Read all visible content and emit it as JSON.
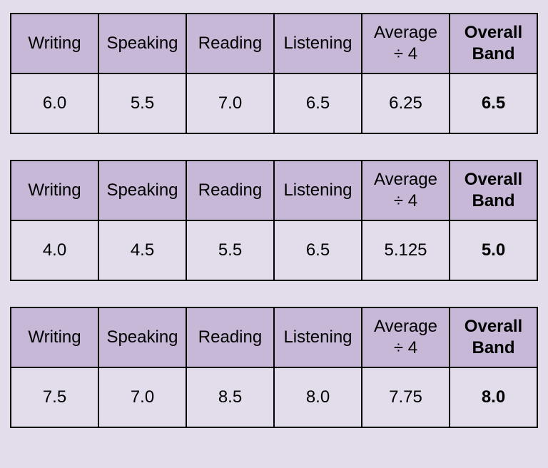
{
  "type": "table",
  "header_background": "#c7b8d8",
  "row_background": "#e2dceb",
  "page_background": "#e2dceb",
  "border_color": "#000000",
  "border_width": 2,
  "font_family": "Arial",
  "cell_fontsize": 24,
  "columns": [
    {
      "label_line1": "Writing",
      "label_line2": "",
      "bold": false
    },
    {
      "label_line1": "Speaking",
      "label_line2": "",
      "bold": false
    },
    {
      "label_line1": "Reading",
      "label_line2": "",
      "bold": false
    },
    {
      "label_line1": "Listening",
      "label_line2": "",
      "bold": false
    },
    {
      "label_line1": "Average",
      "label_line2": "÷ 4",
      "bold": false
    },
    {
      "label_line1": "Overall",
      "label_line2": "Band",
      "bold": true
    }
  ],
  "tables": [
    {
      "row": [
        "6.0",
        "5.5",
        "7.0",
        "6.5",
        "6.25",
        "6.5"
      ],
      "bold_last": true
    },
    {
      "row": [
        "4.0",
        "4.5",
        "5.5",
        "6.5",
        "5.125",
        "5.0"
      ],
      "bold_last": true
    },
    {
      "row": [
        "7.5",
        "7.0",
        "8.5",
        "8.0",
        "7.75",
        "8.0"
      ],
      "bold_last": true
    }
  ]
}
